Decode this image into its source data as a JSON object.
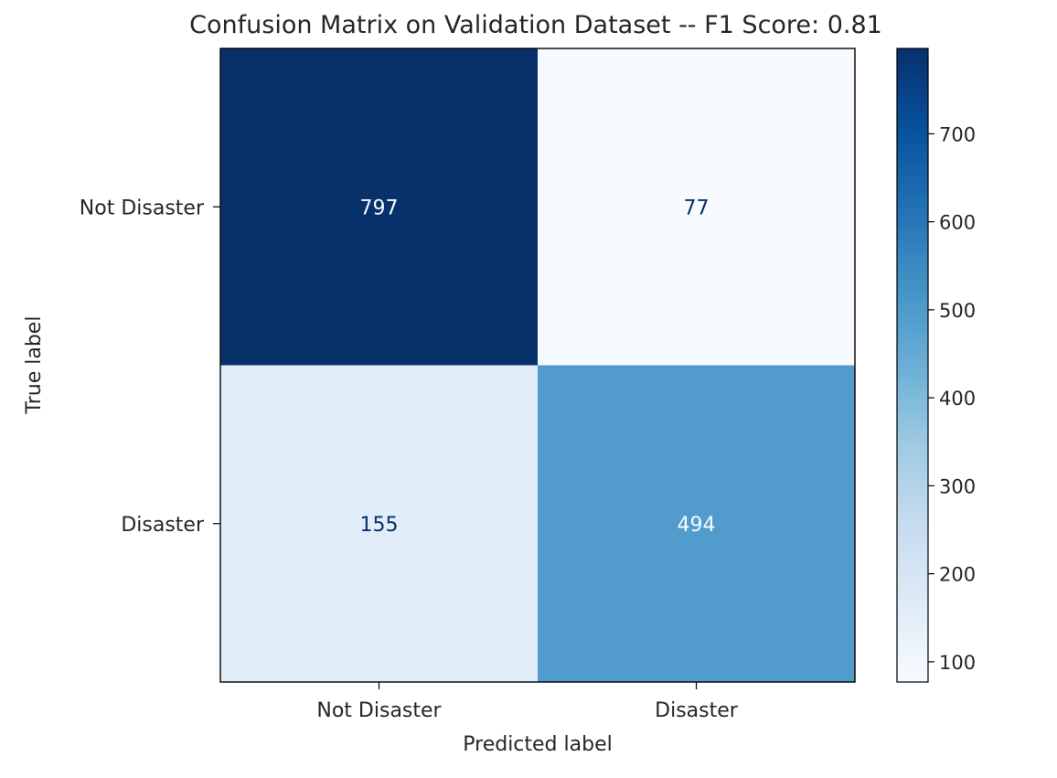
{
  "chart_data": {
    "type": "heatmap",
    "title": "Confusion Matrix on Validation Dataset -- F1 Score: 0.81",
    "xlabel": "Predicted label",
    "ylabel": "True label",
    "x_categories": [
      "Not Disaster",
      "Disaster"
    ],
    "y_categories": [
      "Not Disaster",
      "Disaster"
    ],
    "values": [
      [
        797,
        77
      ],
      [
        155,
        494
      ]
    ],
    "colormap": "Blues",
    "vmin": 77,
    "vmax": 797,
    "colorbar_ticks": [
      100,
      200,
      300,
      400,
      500,
      600,
      700
    ],
    "grid": false
  }
}
